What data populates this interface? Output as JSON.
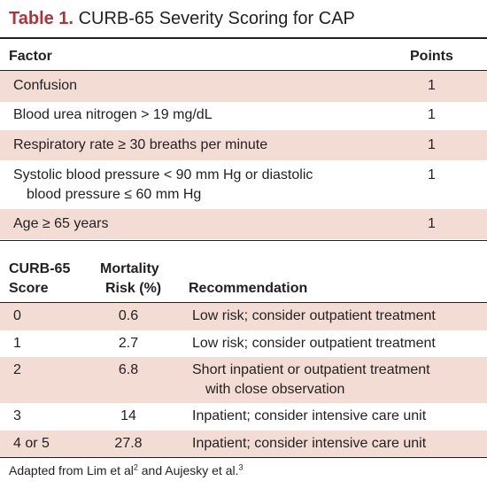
{
  "title": {
    "label": "Table 1.",
    "text": "CURB-65 Severity Scoring for CAP"
  },
  "factor_table": {
    "headers": {
      "factor": "Factor",
      "points": "Points"
    },
    "rows": [
      {
        "factor": "Confusion",
        "points": "1"
      },
      {
        "factor": "Blood urea nitrogen > 19 mg/dL",
        "points": "1"
      },
      {
        "factor": "Respiratory rate ≥ 30 breaths per minute",
        "points": "1"
      },
      {
        "factor_line1": "Systolic blood pressure < 90 mm Hg or diastolic",
        "factor_line2": "blood pressure ≤ 60 mm Hg",
        "points": "1"
      },
      {
        "factor": "Age ≥ 65 years",
        "points": "1"
      }
    ]
  },
  "score_table": {
    "headers": {
      "score_line1": "CURB-65",
      "score_line2": "Score",
      "risk_line1": "Mortality",
      "risk_line2": "Risk (%)",
      "recommendation": "Recommendation"
    },
    "rows": [
      {
        "score": "0",
        "risk": "0.6",
        "rec": "Low risk; consider outpatient treatment"
      },
      {
        "score": "1",
        "risk": "2.7",
        "rec": "Low risk; consider outpatient treatment"
      },
      {
        "score": "2",
        "risk": "6.8",
        "rec_line1": "Short inpatient or outpatient treatment",
        "rec_line2": "with close observation"
      },
      {
        "score": "3",
        "risk": "14",
        "rec": "Inpatient; consider intensive care unit"
      },
      {
        "score": "4 or 5",
        "risk": "27.8",
        "rec": "Inpatient; consider intensive care unit"
      }
    ]
  },
  "footnote": {
    "text1": "Adapted from Lim et al",
    "ref1": "2",
    "text2": " and Aujesky et al.",
    "ref2": "3"
  }
}
